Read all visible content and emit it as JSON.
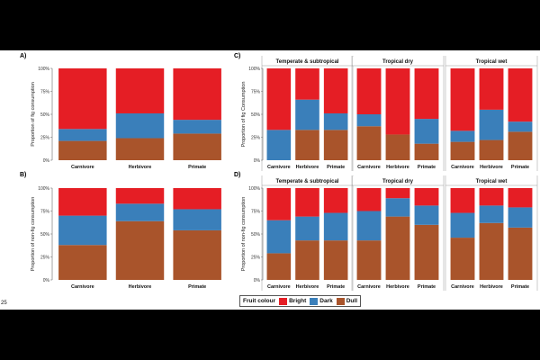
{
  "colors": {
    "Bright": "#e51e25",
    "Dark": "#3a7fba",
    "Dull": "#a9542b"
  },
  "page_number": "25",
  "legend": {
    "title": "Fruit colour",
    "entries": [
      "Bright",
      "Dark",
      "Dull"
    ]
  },
  "chart_data": [
    {
      "panel": "A)",
      "type": "bar",
      "stacked": true,
      "ylabel": "Proportion of fig consumption",
      "yticks": [
        "0%",
        "25%",
        "50%",
        "75%",
        "100%"
      ],
      "categories": [
        "Carnivore",
        "Herbivore",
        "Primate"
      ],
      "series": [
        {
          "name": "Dull",
          "values": [
            0.21,
            0.24,
            0.29
          ]
        },
        {
          "name": "Dark",
          "values": [
            0.13,
            0.27,
            0.15
          ]
        },
        {
          "name": "Bright",
          "values": [
            0.66,
            0.49,
            0.56
          ]
        }
      ]
    },
    {
      "panel": "B)",
      "type": "bar",
      "stacked": true,
      "ylabel": "Proportion of non-fig consumption",
      "yticks": [
        "0%",
        "25%",
        "50%",
        "75%",
        "100%"
      ],
      "categories": [
        "Carnivore",
        "Herbivore",
        "Primate"
      ],
      "series": [
        {
          "name": "Dull",
          "values": [
            0.38,
            0.64,
            0.54
          ]
        },
        {
          "name": "Dark",
          "values": [
            0.32,
            0.19,
            0.23
          ]
        },
        {
          "name": "Bright",
          "values": [
            0.3,
            0.17,
            0.23
          ]
        }
      ]
    },
    {
      "panel": "C)",
      "type": "bar",
      "stacked": true,
      "ylabel": "Proportion of fig Consumption",
      "yticks": [
        "0%",
        "25%",
        "50%",
        "75%",
        "100%"
      ],
      "facets": [
        {
          "title": "Temperate & subtropical",
          "categories": [
            "Carnivore",
            "Herbivore",
            "Primate"
          ],
          "series": [
            {
              "name": "Dull",
              "values": [
                0.0,
                0.33,
                0.33
              ]
            },
            {
              "name": "Dark",
              "values": [
                0.33,
                0.33,
                0.18
              ]
            },
            {
              "name": "Bright",
              "values": [
                0.67,
                0.34,
                0.49
              ]
            }
          ]
        },
        {
          "title": "Tropical dry",
          "categories": [
            "Carnivore",
            "Herbivore",
            "Primate"
          ],
          "series": [
            {
              "name": "Dull",
              "values": [
                0.37,
                0.28,
                0.18
              ]
            },
            {
              "name": "Dark",
              "values": [
                0.13,
                0.0,
                0.27
              ]
            },
            {
              "name": "Bright",
              "values": [
                0.5,
                0.72,
                0.55
              ]
            }
          ]
        },
        {
          "title": "Tropical wet",
          "categories": [
            "Carnivore",
            "Herbivore",
            "Primate"
          ],
          "series": [
            {
              "name": "Dull",
              "values": [
                0.2,
                0.22,
                0.31
              ]
            },
            {
              "name": "Dark",
              "values": [
                0.12,
                0.33,
                0.11
              ]
            },
            {
              "name": "Bright",
              "values": [
                0.68,
                0.45,
                0.58
              ]
            }
          ]
        }
      ]
    },
    {
      "panel": "D)",
      "type": "bar",
      "stacked": true,
      "ylabel": "Proportion of non-fig consumption",
      "yticks": [
        "0%",
        "25%",
        "50%",
        "75%",
        "100%"
      ],
      "facets": [
        {
          "title": "Temperate & subtropical",
          "categories": [
            "Carnivore",
            "Herbivore",
            "Primate"
          ],
          "series": [
            {
              "name": "Dull",
              "values": [
                0.29,
                0.43,
                0.43
              ]
            },
            {
              "name": "Dark",
              "values": [
                0.36,
                0.26,
                0.3
              ]
            },
            {
              "name": "Bright",
              "values": [
                0.35,
                0.31,
                0.27
              ]
            }
          ]
        },
        {
          "title": "Tropical dry",
          "categories": [
            "Carnivore",
            "Herbivore",
            "Primate"
          ],
          "series": [
            {
              "name": "Dull",
              "values": [
                0.43,
                0.69,
                0.6
              ]
            },
            {
              "name": "Dark",
              "values": [
                0.32,
                0.2,
                0.21
              ]
            },
            {
              "name": "Bright",
              "values": [
                0.25,
                0.11,
                0.19
              ]
            }
          ]
        },
        {
          "title": "Tropical wet",
          "categories": [
            "Carnivore",
            "Herbivore",
            "Primate"
          ],
          "series": [
            {
              "name": "Dull",
              "values": [
                0.46,
                0.62,
                0.57
              ]
            },
            {
              "name": "Dark",
              "values": [
                0.27,
                0.19,
                0.22
              ]
            },
            {
              "name": "Bright",
              "values": [
                0.27,
                0.19,
                0.21
              ]
            }
          ]
        }
      ]
    }
  ]
}
